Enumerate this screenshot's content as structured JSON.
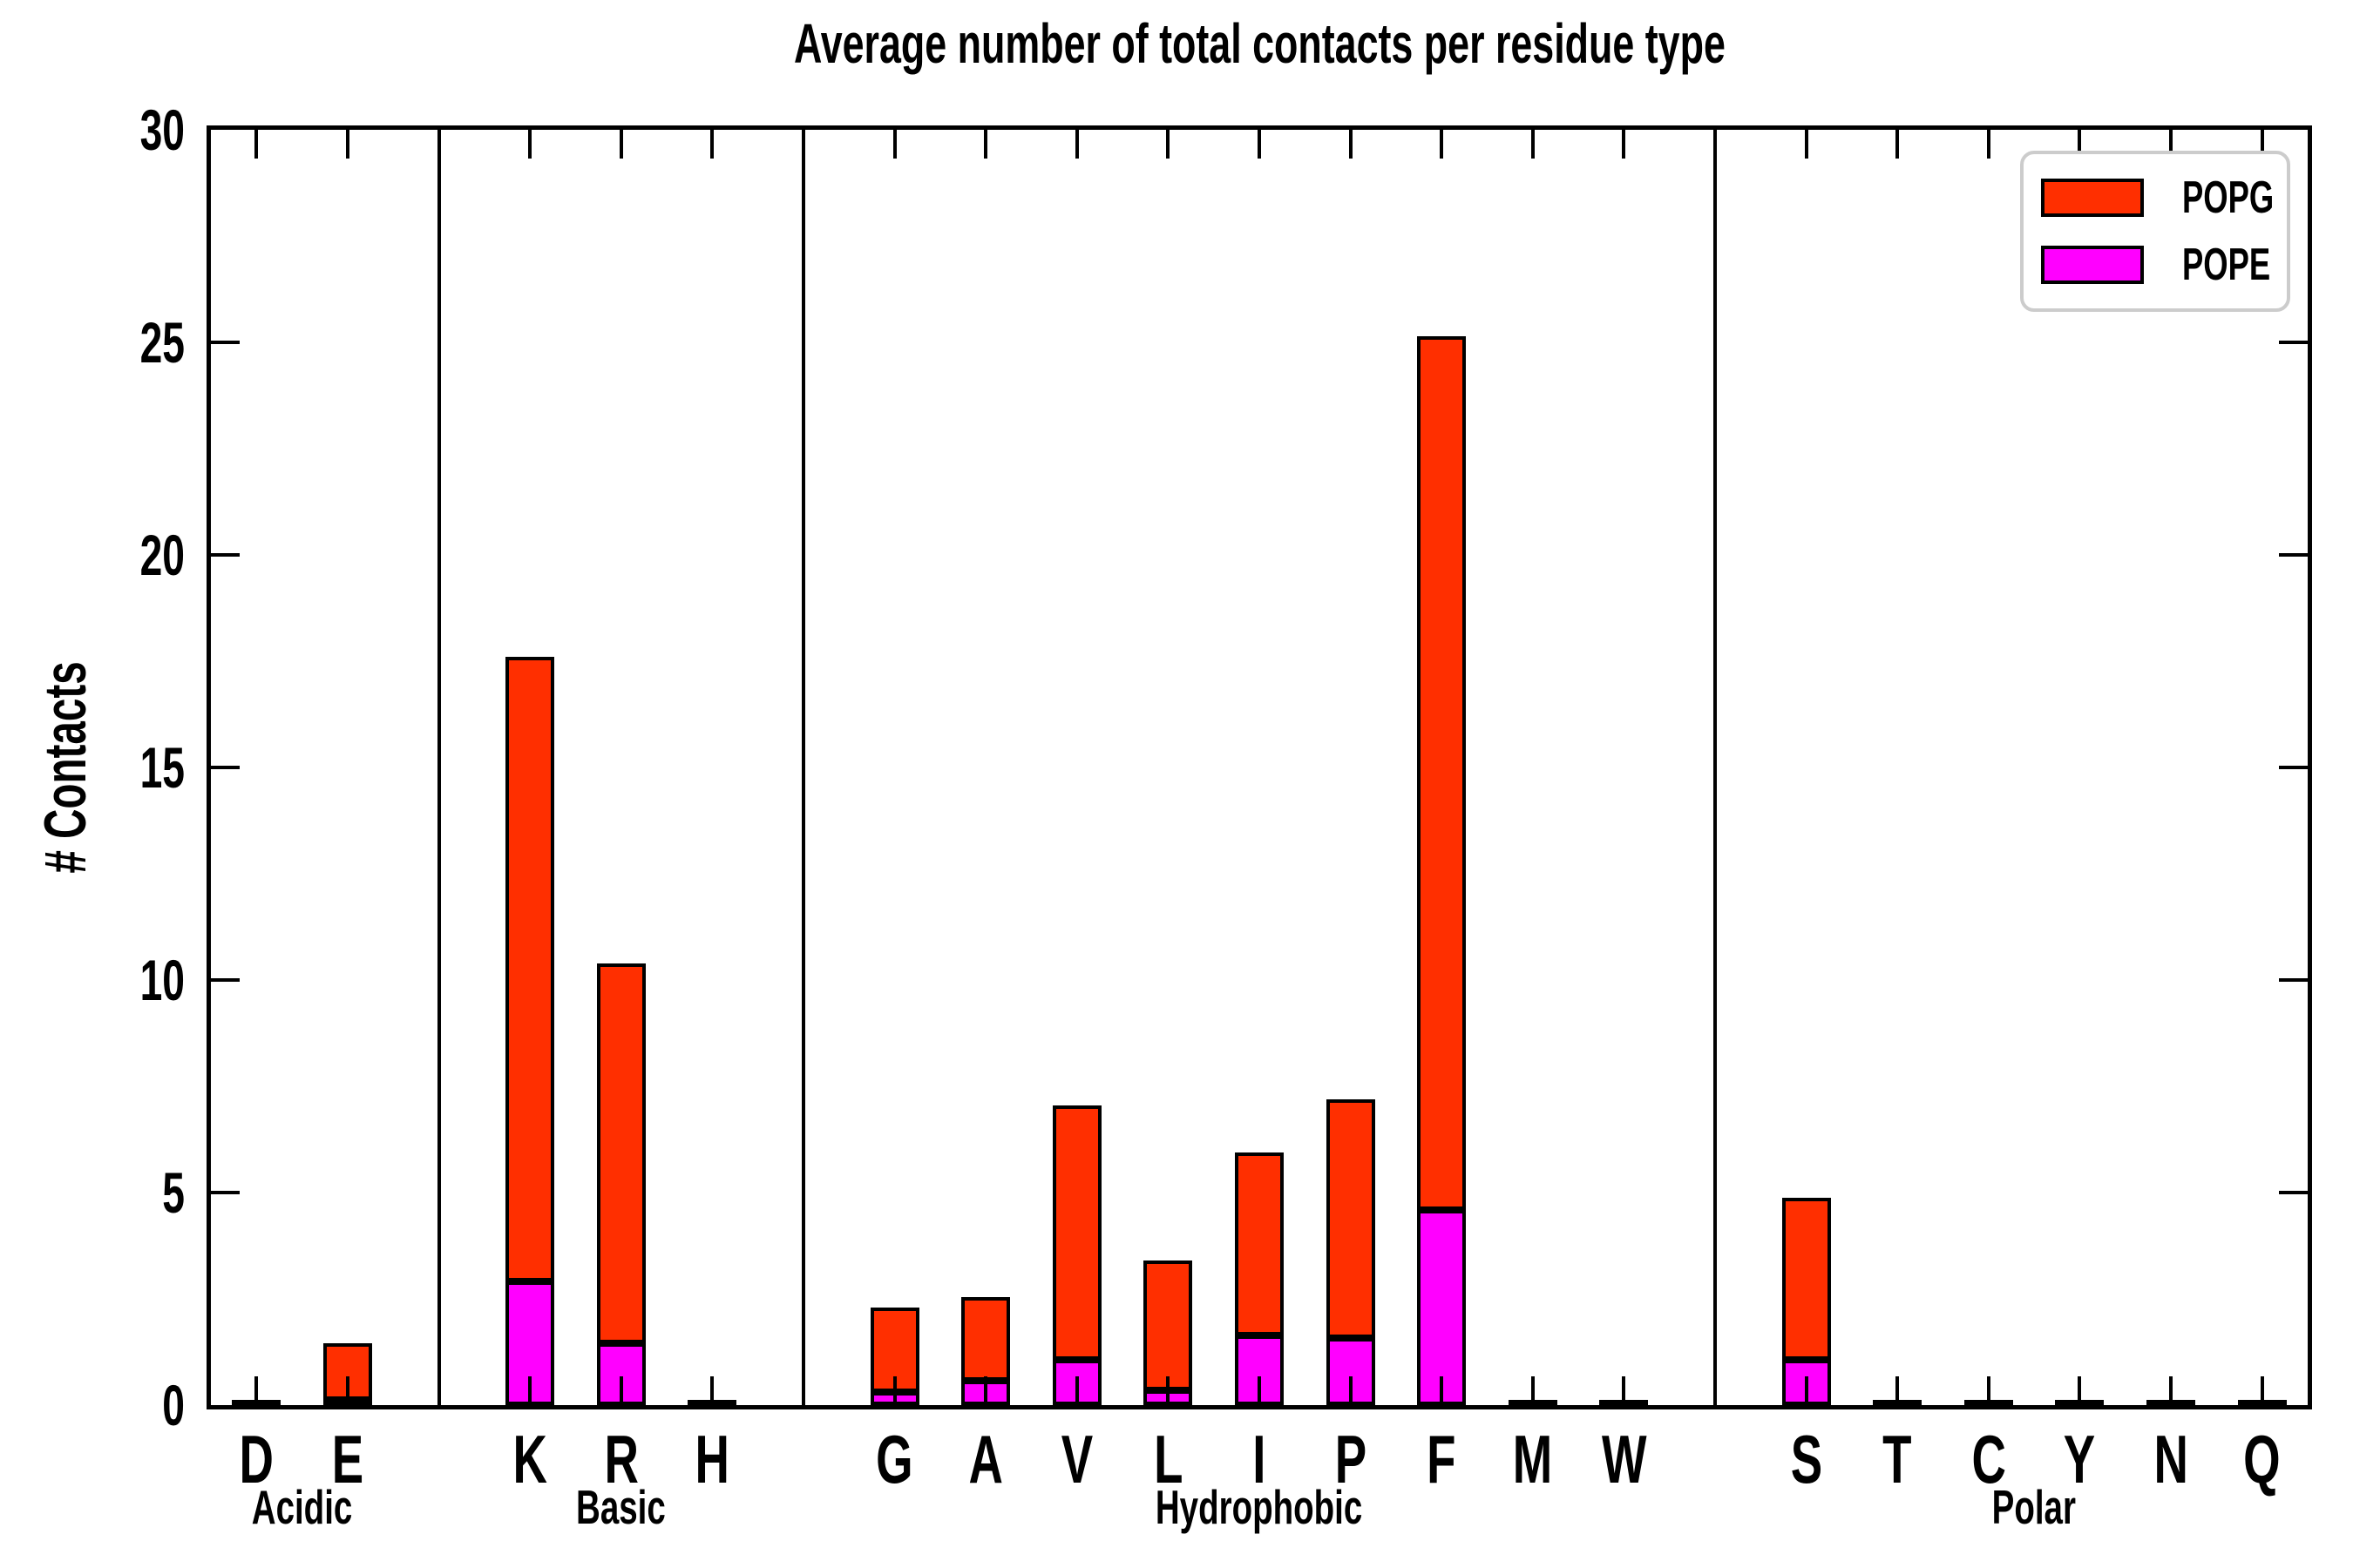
{
  "title": "Average number of total contacts per residue type",
  "y_axis": {
    "label": "# Contacts",
    "ticks": [
      0,
      5,
      10,
      15,
      20,
      25,
      30
    ],
    "max": 30
  },
  "legend": {
    "items": [
      {
        "label": "POPG",
        "color": "#FF2F00"
      },
      {
        "label": "POPE",
        "color": "#FF00FF"
      }
    ]
  },
  "chart_data": {
    "type": "bar",
    "stacked": true,
    "title": "Average number of total contacts per residue type",
    "xlabel": "",
    "ylabel": "# Contacts",
    "ylim": [
      0,
      30
    ],
    "yticks": [
      0,
      5,
      10,
      15,
      20,
      25,
      30
    ],
    "grid": false,
    "legend_position": "upper right",
    "series_order_bottom_to_top": [
      "POPE",
      "POPG"
    ],
    "colors": {
      "POPG": "#FF2F00",
      "POPE": "#FF00FF"
    },
    "groups": [
      {
        "label": "Acidic",
        "categories": [
          "D",
          "E"
        ],
        "series": {
          "POPE": [
            0.02,
            0.12
          ],
          "POPG": [
            0.03,
            1.33
          ]
        },
        "totals": [
          0.05,
          1.45
        ]
      },
      {
        "label": "Basic",
        "categories": [
          "K",
          "R",
          "H"
        ],
        "series": {
          "POPE": [
            2.9,
            1.45,
            0.02
          ],
          "POPG": [
            14.7,
            8.95,
            0.03
          ]
        },
        "totals": [
          17.6,
          10.4,
          0.05
        ]
      },
      {
        "label": "Hydrophobic",
        "categories": [
          "G",
          "A",
          "V",
          "L",
          "I",
          "P",
          "F",
          "M",
          "W"
        ],
        "series": {
          "POPE": [
            0.31,
            0.57,
            1.06,
            0.35,
            1.63,
            1.57,
            4.6,
            0.02,
            0.02
          ],
          "POPG": [
            1.99,
            1.98,
            5.99,
            3.05,
            4.32,
            5.63,
            20.55,
            0.03,
            0.03
          ]
        },
        "totals": [
          2.3,
          2.55,
          7.05,
          3.4,
          5.95,
          7.2,
          25.15,
          0.05,
          0.05
        ]
      },
      {
        "label": "Polar",
        "categories": [
          "S",
          "T",
          "C",
          "Y",
          "N",
          "Q"
        ],
        "series": {
          "POPE": [
            1.06,
            0.02,
            0.02,
            0.02,
            0.02,
            0.02
          ],
          "POPG": [
            3.81,
            0.03,
            0.03,
            0.03,
            0.03,
            0.03
          ]
        },
        "totals": [
          4.87,
          0.05,
          0.05,
          0.05,
          0.05,
          0.05
        ]
      }
    ]
  }
}
